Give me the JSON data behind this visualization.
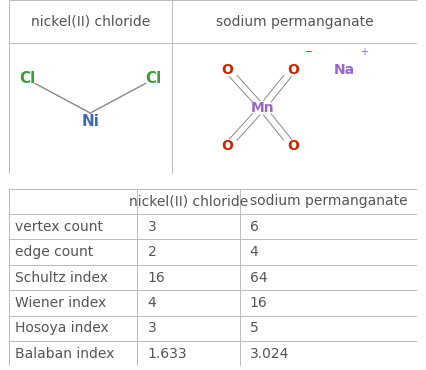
{
  "col_headers": [
    "",
    "nickel(II) chloride",
    "sodium permanganate"
  ],
  "rows": [
    [
      "vertex count",
      "3",
      "6"
    ],
    [
      "edge count",
      "2",
      "4"
    ],
    [
      "Schultz index",
      "16",
      "64"
    ],
    [
      "Wiener index",
      "4",
      "16"
    ],
    [
      "Hosoya index",
      "3",
      "5"
    ],
    [
      "Balaban index",
      "1.633",
      "3.024"
    ]
  ],
  "top_headers": [
    "nickel(II) chloride",
    "sodium permanganate"
  ],
  "border_color": "#bbbbbb",
  "text_color": "#555555",
  "header_fontsize": 10,
  "cell_fontsize": 10,
  "fig_bg": "#ffffff",
  "green_cl": "#3a9c3a",
  "blue_ni": "#4169aa",
  "red_o": "#cc2200",
  "purple_mn": "#9966cc",
  "purple_na": "#9966cc",
  "bond_color": "#888888"
}
